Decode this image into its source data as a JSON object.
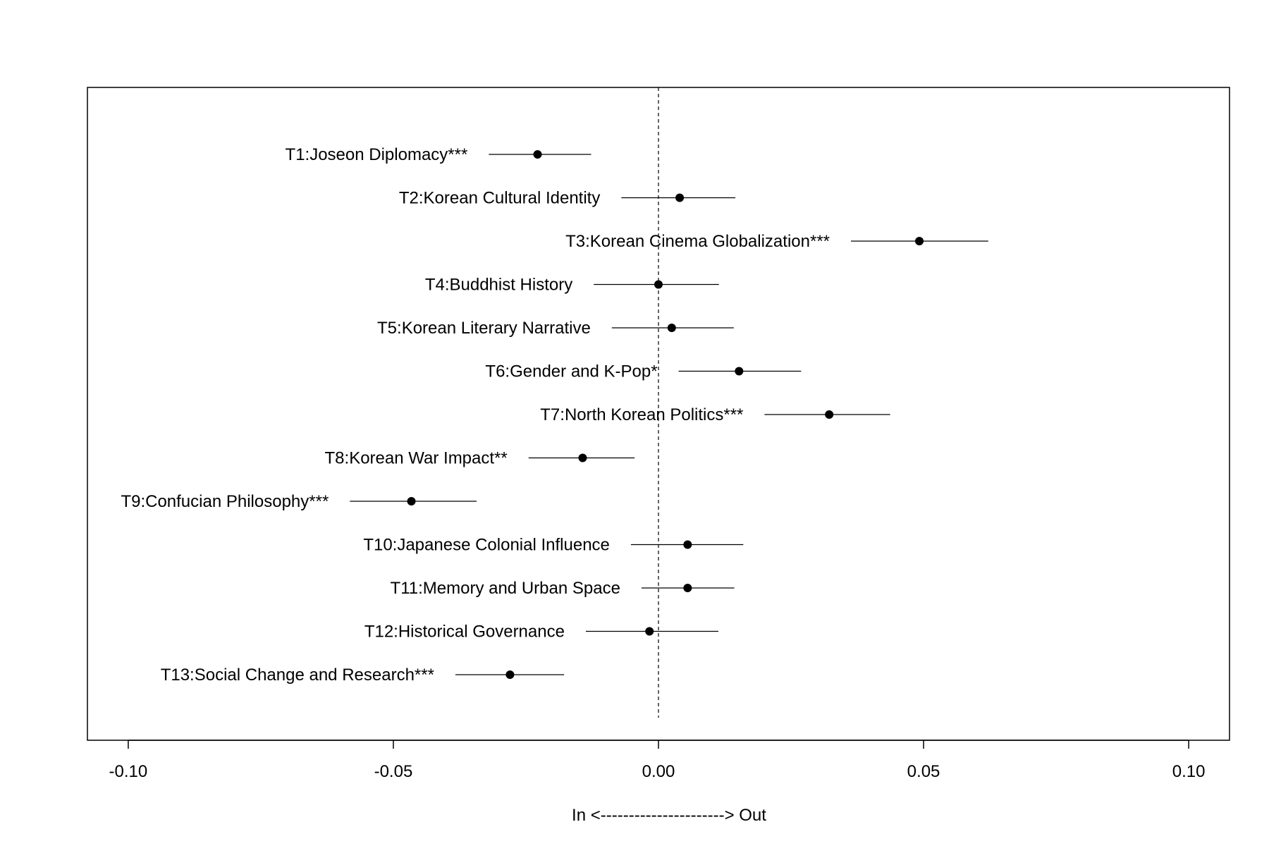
{
  "chart_data": {
    "type": "scatter",
    "title": "",
    "xlabel": "In <----------------------> Out",
    "ylabel": "",
    "xlim": [
      -0.1077,
      0.1077
    ],
    "xticks": [
      -0.1,
      -0.05,
      0.0,
      0.05,
      0.1
    ],
    "xtick_labels": [
      "-0.10",
      "-0.05",
      "0.00",
      "0.05",
      "0.10"
    ],
    "reference_line": 0.0,
    "grid": false,
    "legend": "none",
    "points": [
      {
        "label": "T1:Joseon Diplomacy***",
        "estimate": -0.0228,
        "lower": -0.032,
        "upper": -0.0127
      },
      {
        "label": "T2:Korean Cultural Identity",
        "estimate": 0.004,
        "lower": -0.007,
        "upper": 0.0145
      },
      {
        "label": "T3:Korean Cinema Globalization***",
        "estimate": 0.0492,
        "lower": 0.0363,
        "upper": 0.0622
      },
      {
        "label": "T4:Buddhist History",
        "estimate": 0.0,
        "lower": -0.0122,
        "upper": 0.0114
      },
      {
        "label": "T5:Korean Literary Narrative",
        "estimate": 0.0025,
        "lower": -0.0088,
        "upper": 0.0142
      },
      {
        "label": "T6:Gender and K-Pop*",
        "estimate": 0.0152,
        "lower": 0.0038,
        "upper": 0.0269
      },
      {
        "label": "T7:North Korean Politics***",
        "estimate": 0.0322,
        "lower": 0.02,
        "upper": 0.0437
      },
      {
        "label": "T8:Korean War Impact**",
        "estimate": -0.0143,
        "lower": -0.0245,
        "upper": -0.0045
      },
      {
        "label": "T9:Confucian Philosophy***",
        "estimate": -0.0466,
        "lower": -0.0582,
        "upper": -0.0343
      },
      {
        "label": "T10:Japanese Colonial Influence",
        "estimate": 0.0055,
        "lower": -0.0052,
        "upper": 0.016
      },
      {
        "label": "T11:Memory and Urban Space",
        "estimate": 0.0055,
        "lower": -0.0032,
        "upper": 0.0143
      },
      {
        "label": "T12:Historical Governance",
        "estimate": -0.0017,
        "lower": -0.0137,
        "upper": 0.0113
      },
      {
        "label": "T13:Social Change and Research***",
        "estimate": -0.028,
        "lower": -0.0383,
        "upper": -0.0178
      }
    ]
  }
}
